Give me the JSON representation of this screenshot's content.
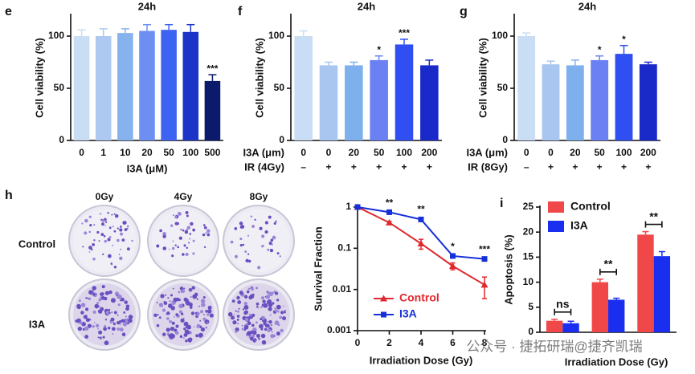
{
  "chart_data": [
    {
      "type": "bar",
      "panel": "e",
      "title": "24h",
      "ylabel": "Cell viability (%)",
      "xlabel": "I3A (μM)",
      "categories": [
        "0",
        "1",
        "10",
        "20",
        "50",
        "100",
        "500"
      ],
      "values": [
        100,
        100,
        103,
        105,
        106,
        104,
        57
      ],
      "errors": [
        6,
        7,
        4,
        6,
        5,
        7,
        6
      ],
      "significance": [
        null,
        null,
        null,
        null,
        null,
        null,
        "***"
      ],
      "colors": [
        "#c9ddf4",
        "#adc9f1",
        "#86b2ee",
        "#6d8ff2",
        "#3d63f2",
        "#1c35c8",
        "#0b1a6a"
      ],
      "ylim": [
        0,
        120
      ],
      "yticks": [
        0,
        50,
        100
      ]
    },
    {
      "type": "bar",
      "panel": "f",
      "title": "24h",
      "ylabel": "Cell viability (%)",
      "xlabel": "I3A (μm)",
      "categories": [
        "0",
        "0",
        "20",
        "50",
        "100",
        "200"
      ],
      "ir_label": "IR (4Gy)",
      "ir": [
        "–",
        "+",
        "+",
        "+",
        "+",
        "+"
      ],
      "values": [
        100,
        72,
        72,
        77,
        92,
        72
      ],
      "errors": [
        5,
        3,
        3,
        4,
        5,
        5
      ],
      "significance": [
        null,
        null,
        null,
        "*",
        "***",
        null
      ],
      "colors": [
        "#c9ddf4",
        "#a9c6f1",
        "#7fb0ee",
        "#6a80f3",
        "#2f4ff2",
        "#1a2ac8"
      ],
      "ylim": [
        0,
        120
      ],
      "yticks": [
        0,
        50,
        100
      ]
    },
    {
      "type": "bar",
      "panel": "g",
      "title": "24h",
      "ylabel": "Cell viability (%)",
      "xlabel": "I3A (μm)",
      "categories": [
        "0",
        "0",
        "20",
        "50",
        "100",
        "200"
      ],
      "ir_label": "IR (8Gy)",
      "ir": [
        "–",
        "+",
        "+",
        "+",
        "+",
        "+"
      ],
      "values": [
        100,
        73,
        72,
        77,
        83,
        73
      ],
      "errors": [
        3,
        3,
        5,
        4,
        8,
        2
      ],
      "significance": [
        null,
        null,
        null,
        "*",
        "*",
        null
      ],
      "colors": [
        "#c9ddf4",
        "#a9c6f1",
        "#7fb0ee",
        "#6a80f3",
        "#2f4ff2",
        "#1a2ac8"
      ],
      "ylim": [
        0,
        120
      ],
      "yticks": [
        0,
        50,
        100
      ]
    },
    {
      "type": "line",
      "ylabel": "Survival Fraction",
      "xlabel": "Irradiation Dose (Gy)",
      "log_y": true,
      "x": [
        0,
        2,
        4,
        6,
        8
      ],
      "series": [
        {
          "name": "Control",
          "color": "#e0282e",
          "marker": "triangle",
          "values": [
            1,
            0.42,
            0.13,
            0.037,
            0.013
          ],
          "errors": [
            0,
            0.03,
            0.035,
            0.007,
            0.007
          ]
        },
        {
          "name": "I3A",
          "color": "#1530d8",
          "marker": "square",
          "values": [
            1,
            0.75,
            0.5,
            0.065,
            0.055
          ],
          "errors": [
            0,
            0.03,
            0.05,
            0.004,
            0.004
          ]
        }
      ],
      "significance": [
        null,
        "**",
        "**",
        "*",
        "***"
      ],
      "xlim": [
        0,
        8
      ],
      "xticks": [
        0,
        2,
        4,
        6,
        8
      ],
      "ylim": [
        0.001,
        1
      ],
      "yticks": [
        0.001,
        0.01,
        0.1,
        1
      ]
    },
    {
      "type": "grouped_bar",
      "panel": "i",
      "ylabel": "Apoptosis (%)",
      "xlabel": "Irradiation Dose (Gy)",
      "categories": [
        null,
        null,
        null
      ],
      "series": [
        {
          "name": "Control",
          "color": "#f04848",
          "values": [
            2.3,
            10,
            19.5
          ],
          "errors": [
            0.3,
            0.6,
            0.6
          ]
        },
        {
          "name": "I3A",
          "color": "#1a2ef0",
          "values": [
            1.8,
            6.5,
            15.2
          ],
          "errors": [
            0.4,
            0.3,
            0.9
          ]
        }
      ],
      "significance": [
        "ns",
        "**",
        "**"
      ],
      "ylim": [
        0,
        25
      ],
      "yticks": [
        0,
        5,
        10,
        15,
        20,
        25
      ]
    }
  ],
  "colony_images": {
    "panel": "h",
    "columns": [
      "0Gy",
      "4Gy",
      "8Gy"
    ],
    "rows": [
      "Control",
      "I3A"
    ]
  },
  "watermark": "公众号 · 捷拓研瑞@捷齐凯瑞"
}
